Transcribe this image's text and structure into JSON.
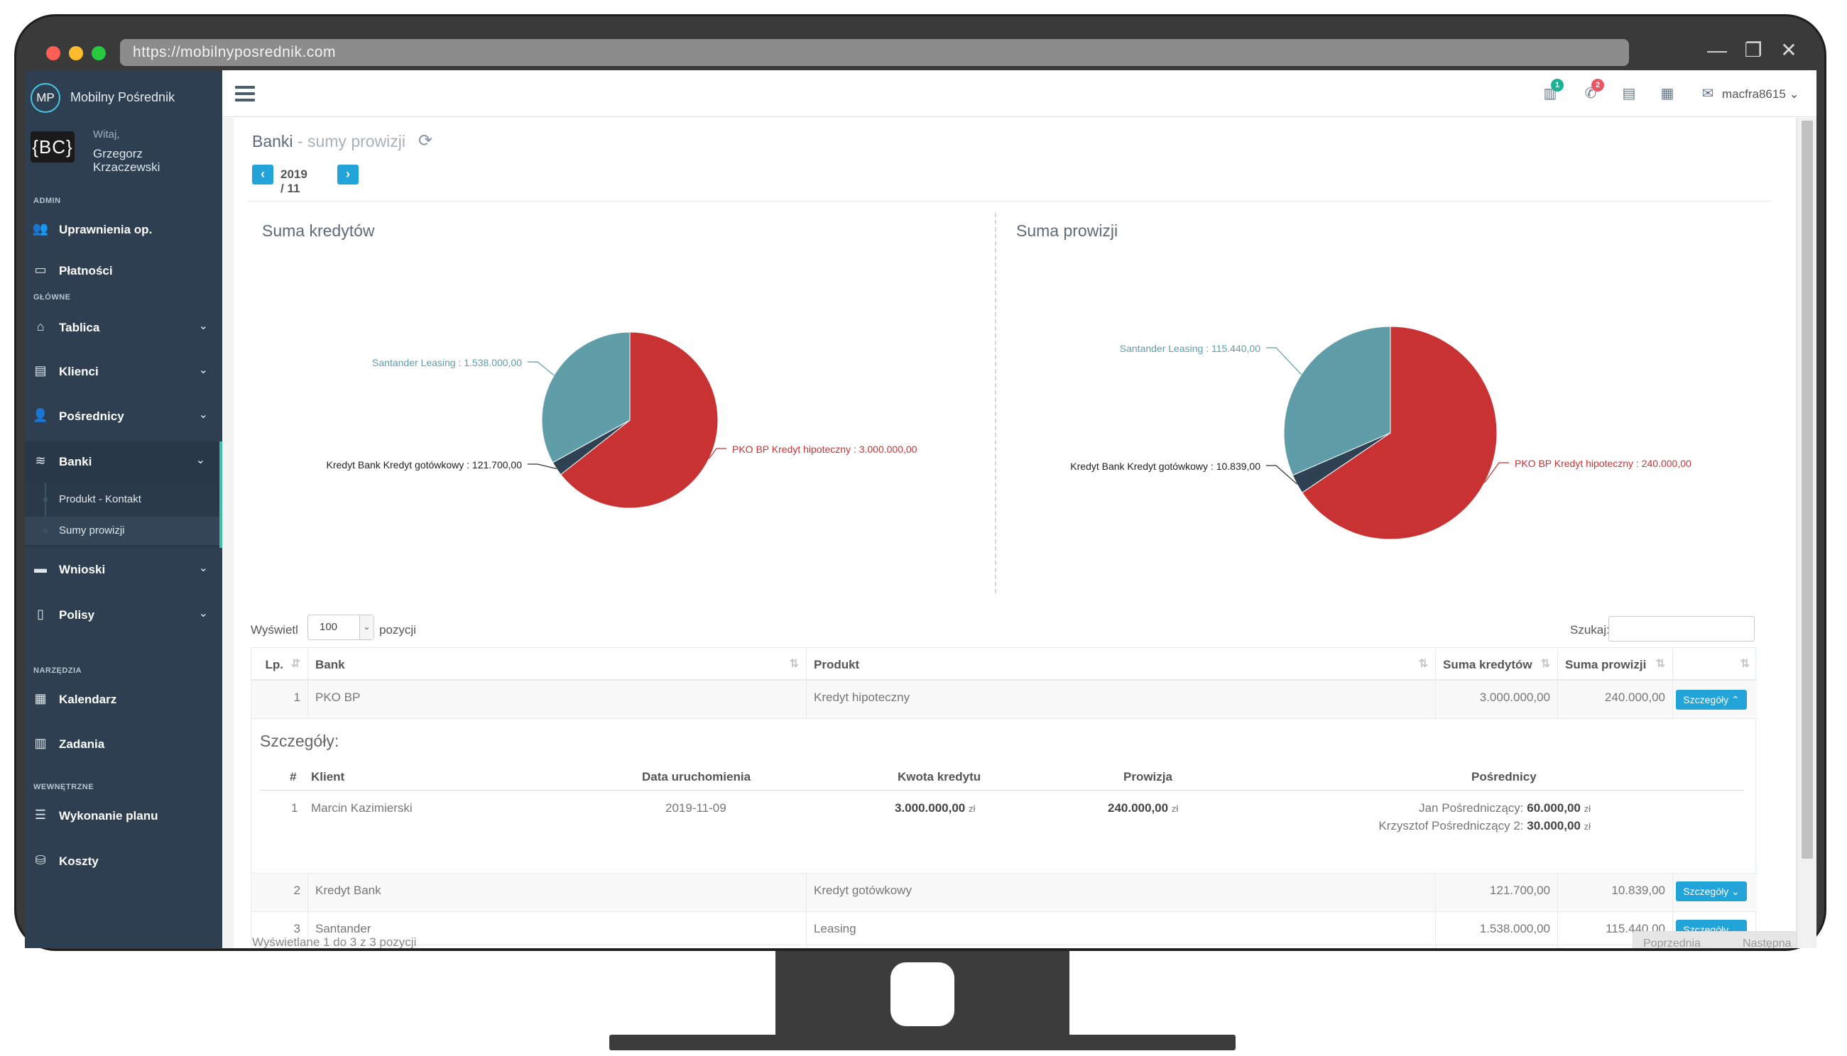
{
  "browser": {
    "url": "https://mobilnyposrednik.com"
  },
  "brand": {
    "logo": "MP",
    "name": "Mobilny Pośrednik"
  },
  "user": {
    "avatar": "{BC}",
    "greeting": "Witaj,",
    "name": "Grzegorz Krzaczewski"
  },
  "sidebar": {
    "sections": {
      "admin": "ADMIN",
      "main": "GŁÓWNE",
      "tools": "NARZĘDZIA",
      "internal": "WEWNĘTRZNE"
    },
    "items": [
      {
        "label": "Uprawnienia op.",
        "icon": "users-icon"
      },
      {
        "label": "Płatności",
        "icon": "payment-icon"
      },
      {
        "label": "Tablica",
        "icon": "home-icon"
      },
      {
        "label": "Klienci",
        "icon": "id-card-icon"
      },
      {
        "label": "Pośrednicy",
        "icon": "user-tie-icon"
      },
      {
        "label": "Banki",
        "icon": "coins-icon"
      },
      {
        "label": "Wnioski",
        "icon": "folder-icon"
      },
      {
        "label": "Polisy",
        "icon": "document-icon"
      },
      {
        "label": "Kalendarz",
        "icon": "calendar-icon"
      },
      {
        "label": "Zadania",
        "icon": "clipboard-icon"
      },
      {
        "label": "Wykonanie planu",
        "icon": "list-icon"
      },
      {
        "label": "Koszty",
        "icon": "coins-icon"
      }
    ],
    "submenu": [
      {
        "label": "Produkt - Kontakt"
      },
      {
        "label": "Sumy prowizji"
      }
    ]
  },
  "header": {
    "notifications": [
      {
        "icon": "clipboard-icon",
        "badge": "1"
      },
      {
        "icon": "phone-icon",
        "badge": "2"
      }
    ],
    "icons": [
      "document-icon",
      "calendar-icon",
      "envelope-icon"
    ],
    "username": "macfra8615"
  },
  "page": {
    "title": "Banki",
    "subtitle": " - sumy prowizji",
    "period": "2019 / 11"
  },
  "charts": [
    {
      "title": "Suma kredytów",
      "slices": [
        {
          "label": "PKO BP Kredyt hipoteczny : 3.000.000,00",
          "value": 3000000,
          "color": "#c93233"
        },
        {
          "label": "Kredyt Bank Kredyt gotówkowy : 121.700,00",
          "value": 121700,
          "color": "#2e4254"
        },
        {
          "label": "Santander Leasing : 1.538.000,00",
          "value": 1538000,
          "color": "#5f9ea8"
        }
      ]
    },
    {
      "title": "Suma prowizji",
      "slices": [
        {
          "label": "PKO BP Kredyt hipoteczny : 240.000,00",
          "value": 240000,
          "color": "#c93233"
        },
        {
          "label": "Kredyt Bank Kredyt gotówkowy : 10.839,00",
          "value": 10839,
          "color": "#2e4254"
        },
        {
          "label": "Santander Leasing : 115.440,00",
          "value": 115440,
          "color": "#5f9ea8"
        }
      ]
    }
  ],
  "table": {
    "show_label": "Wyświetl",
    "show_value": "100",
    "show_suffix": "pozycji",
    "search_label": "Szukaj:",
    "columns": [
      "Lp.",
      "Bank",
      "Produkt",
      "Suma kredytów",
      "Suma prowizji"
    ],
    "rows": [
      {
        "lp": "1",
        "bank": "PKO BP",
        "product": "Kredyt hipoteczny",
        "credits": "3.000.000,00",
        "commission": "240.000,00",
        "button": "Szczegóły"
      },
      {
        "lp": "2",
        "bank": "Kredyt Bank",
        "product": "Kredyt gotówkowy",
        "credits": "121.700,00",
        "commission": "10.839,00",
        "button": "Szczegóły"
      },
      {
        "lp": "3",
        "bank": "Santander",
        "product": "Leasing",
        "credits": "1.538.000,00",
        "commission": "115.440,00",
        "button": "Szczegóły"
      }
    ],
    "details": {
      "title": "Szczegóły:",
      "columns": [
        "#",
        "Klient",
        "Data uruchomienia",
        "Kwota kredytu",
        "Prowizja",
        "Pośrednicy"
      ],
      "row": {
        "num": "1",
        "client": "Marcin Kazimierski",
        "date": "2019-11-09",
        "amount": "3.000.000,00",
        "commission": "240.000,00",
        "currency": "zł",
        "brokers": [
          {
            "name": "Jan Pośredniczący:",
            "value": "60.000,00"
          },
          {
            "name": "Krzysztof Pośredniczący 2:",
            "value": "30.000,00"
          }
        ]
      }
    },
    "footer": "Wyświetlane 1 do 3 z 3 pozycji",
    "pager": {
      "prev": "Poprzednia",
      "next": "Następna"
    }
  }
}
